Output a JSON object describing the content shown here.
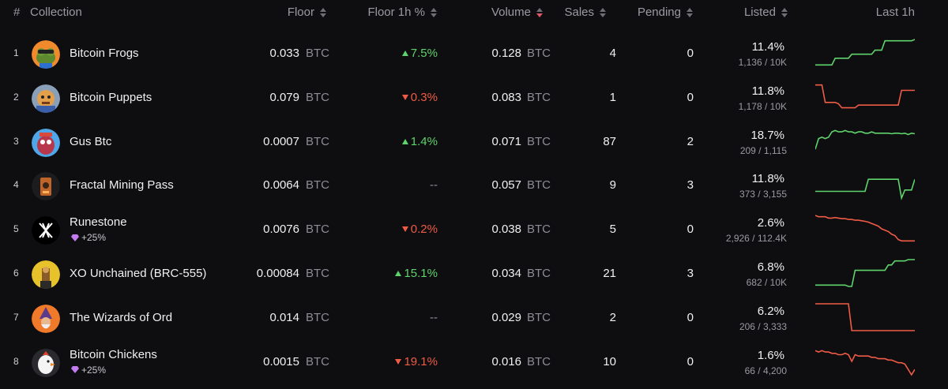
{
  "headers": {
    "rank": "#",
    "collection": "Collection",
    "floor": "Floor",
    "floor_1h": "Floor 1h %",
    "volume": "Volume",
    "sales": "Sales",
    "pending": "Pending",
    "listed": "Listed",
    "last_1h": "Last 1h"
  },
  "colors": {
    "up": "#5fd36c",
    "down": "#ef5b45",
    "neutral": "#8d8d95",
    "accent_sort": "#e0566a",
    "gem": "#c27cf0"
  },
  "rows": [
    {
      "rank": "1",
      "name": "Bitcoin Frogs",
      "boost": "",
      "floor": "0.033",
      "unit": "BTC",
      "change": "7.5%",
      "dir": "up",
      "volume": "0.128",
      "sales": "4",
      "pending": "0",
      "listed_pct": "11.4%",
      "listed_count": "1,136 / 10K",
      "avatar_icon": "frog-avatar",
      "trend": [
        0.05,
        0.05,
        0.05,
        0.05,
        0.05,
        0.05,
        0.3,
        0.3,
        0.3,
        0.3,
        0.3,
        0.45,
        0.45,
        0.45,
        0.45,
        0.45,
        0.45,
        0.45,
        0.6,
        0.6,
        0.6,
        0.95,
        0.95,
        0.95,
        0.95,
        0.95,
        0.95,
        0.95,
        0.95,
        0.95,
        1.0
      ]
    },
    {
      "rank": "2",
      "name": "Bitcoin Puppets",
      "boost": "",
      "floor": "0.079",
      "unit": "BTC",
      "change": "0.3%",
      "dir": "down",
      "volume": "0.083",
      "sales": "1",
      "pending": "0",
      "listed_pct": "11.8%",
      "listed_count": "1,178 / 10K",
      "avatar_icon": "puppet-avatar",
      "trend": [
        0.95,
        0.95,
        0.95,
        0.3,
        0.3,
        0.3,
        0.3,
        0.25,
        0.1,
        0.1,
        0.1,
        0.1,
        0.1,
        0.2,
        0.2,
        0.2,
        0.2,
        0.2,
        0.2,
        0.2,
        0.2,
        0.2,
        0.2,
        0.2,
        0.2,
        0.2,
        0.75,
        0.75,
        0.75,
        0.75,
        0.75
      ]
    },
    {
      "rank": "3",
      "name": "Gus Btc",
      "boost": "",
      "floor": "0.0007",
      "unit": "BTC",
      "change": "1.4%",
      "dir": "up",
      "volume": "0.071",
      "sales": "87",
      "pending": "2",
      "listed_pct": "18.7%",
      "listed_count": "209 / 1,115",
      "avatar_icon": "gus-avatar",
      "trend": [
        0.2,
        0.6,
        0.65,
        0.6,
        0.65,
        0.85,
        0.9,
        0.85,
        0.85,
        0.9,
        0.85,
        0.85,
        0.8,
        0.85,
        0.85,
        0.8,
        0.8,
        0.85,
        0.8,
        0.8,
        0.8,
        0.8,
        0.8,
        0.78,
        0.8,
        0.8,
        0.78,
        0.8,
        0.75,
        0.8,
        0.78
      ]
    },
    {
      "rank": "4",
      "name": "Fractal Mining Pass",
      "boost": "",
      "floor": "0.0064",
      "unit": "BTC",
      "change": "--",
      "dir": "none",
      "volume": "0.057",
      "sales": "9",
      "pending": "3",
      "listed_pct": "11.8%",
      "listed_count": "373 / 3,155",
      "avatar_icon": "mining-pass-avatar",
      "trend": [
        0.25,
        0.25,
        0.25,
        0.25,
        0.25,
        0.25,
        0.25,
        0.25,
        0.25,
        0.25,
        0.25,
        0.25,
        0.25,
        0.25,
        0.25,
        0.25,
        0.7,
        0.7,
        0.7,
        0.7,
        0.7,
        0.7,
        0.7,
        0.7,
        0.7,
        0.7,
        0.0,
        0.3,
        0.3,
        0.3,
        0.7
      ]
    },
    {
      "rank": "5",
      "name": "Runestone",
      "boost": "+25%",
      "floor": "0.0076",
      "unit": "BTC",
      "change": "0.2%",
      "dir": "down",
      "volume": "0.038",
      "sales": "5",
      "pending": "0",
      "listed_pct": "2.6%",
      "listed_count": "2,926 / 112.4K",
      "avatar_icon": "runestone-avatar",
      "trend": [
        1.0,
        0.95,
        0.95,
        0.95,
        0.9,
        0.9,
        0.92,
        0.9,
        0.88,
        0.88,
        0.85,
        0.85,
        0.82,
        0.82,
        0.8,
        0.78,
        0.75,
        0.7,
        0.65,
        0.6,
        0.5,
        0.45,
        0.4,
        0.3,
        0.25,
        0.1,
        0.05,
        0.05,
        0.05,
        0.05,
        0.05
      ]
    },
    {
      "rank": "6",
      "name": "XO Unchained (BRC-555)",
      "boost": "",
      "floor": "0.00084",
      "unit": "BTC",
      "change": "15.1%",
      "dir": "up",
      "volume": "0.034",
      "sales": "21",
      "pending": "3",
      "listed_pct": "6.8%",
      "listed_count": "682 / 10K",
      "avatar_icon": "xo-avatar",
      "trend": [
        0.05,
        0.05,
        0.05,
        0.05,
        0.05,
        0.05,
        0.05,
        0.05,
        0.05,
        0.05,
        0.0,
        0.0,
        0.6,
        0.6,
        0.6,
        0.6,
        0.6,
        0.6,
        0.6,
        0.6,
        0.6,
        0.6,
        0.8,
        0.8,
        0.95,
        0.95,
        0.95,
        0.95,
        1.0,
        1.0,
        1.0
      ]
    },
    {
      "rank": "7",
      "name": "The Wizards of Ord",
      "boost": "",
      "floor": "0.014",
      "unit": "BTC",
      "change": "--",
      "dir": "none",
      "volume": "0.029",
      "sales": "2",
      "pending": "0",
      "listed_pct": "6.2%",
      "listed_count": "206 / 3,333",
      "avatar_icon": "wizard-avatar",
      "trend": [
        1.0,
        1.0,
        1.0,
        1.0,
        1.0,
        1.0,
        1.0,
        1.0,
        1.0,
        1.0,
        1.0,
        0.0,
        0.0,
        0.0,
        0.0,
        0.0,
        0.0,
        0.0,
        0.0,
        0.0,
        0.0,
        0.0,
        0.0,
        0.0,
        0.0,
        0.0,
        0.0,
        0.0,
        0.0,
        0.0,
        0.0
      ]
    },
    {
      "rank": "8",
      "name": "Bitcoin Chickens",
      "boost": "+25%",
      "floor": "0.0015",
      "unit": "BTC",
      "change": "19.1%",
      "dir": "down",
      "volume": "0.016",
      "sales": "10",
      "pending": "0",
      "listed_pct": "1.6%",
      "listed_count": "66 / 4,200",
      "avatar_icon": "chicken-avatar",
      "trend": [
        0.9,
        0.85,
        0.9,
        0.85,
        0.85,
        0.8,
        0.8,
        0.75,
        0.75,
        0.8,
        0.75,
        0.5,
        0.75,
        0.7,
        0.7,
        0.7,
        0.7,
        0.65,
        0.65,
        0.6,
        0.6,
        0.6,
        0.55,
        0.55,
        0.5,
        0.45,
        0.45,
        0.4,
        0.2,
        0.0,
        0.2
      ]
    }
  ]
}
